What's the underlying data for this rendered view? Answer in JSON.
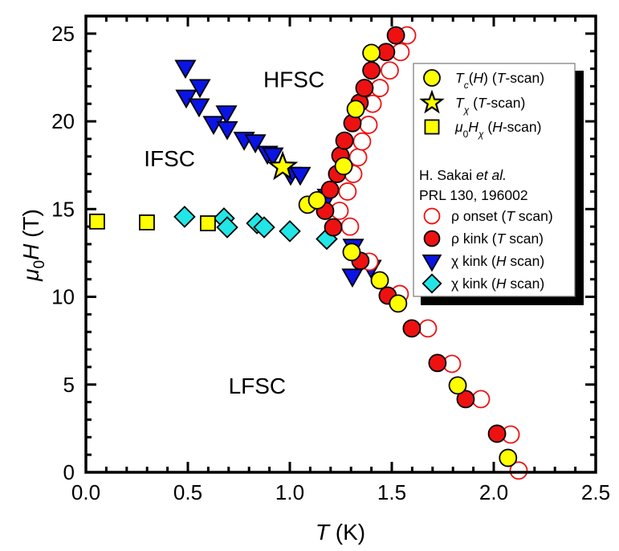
{
  "chart_data": {
    "type": "scatter",
    "title": "",
    "xlabel": "T (K)",
    "xlabel_parts": {
      "italic": "T",
      "rest": " (K)"
    },
    "ylabel": "μ0H (T)",
    "ylabel_parts": {
      "mu": "μ",
      "sub": "0",
      "italic": "H",
      "rest": " (T)"
    },
    "xlim": [
      0.0,
      2.5
    ],
    "ylim": [
      0,
      26
    ],
    "x_major_ticks": [
      0.0,
      0.5,
      1.0,
      1.5,
      2.0,
      2.5
    ],
    "x_tick_labels": [
      "0.0",
      "0.5",
      "1.0",
      "1.5",
      "2.0",
      "2.5"
    ],
    "x_minor_step": 0.1,
    "y_major_ticks": [
      0,
      5,
      10,
      15,
      20,
      25
    ],
    "y_tick_labels": [
      "0",
      "5",
      "10",
      "15",
      "20",
      "25"
    ],
    "y_minor_step": 1,
    "grid": false,
    "legend_position": "top-right",
    "annotations": [
      {
        "text": "HFSC",
        "x": 1.02,
        "y": 22.4
      },
      {
        "text": "IFSC",
        "x": 0.41,
        "y": 17.9
      },
      {
        "text": "LFSC",
        "x": 0.84,
        "y": 4.95
      }
    ],
    "legend": {
      "reference_line1": "H. Sakai et al.",
      "reference_line1_parts": {
        "plain": "H. Sakai ",
        "italic": "et al."
      },
      "reference_line2": "PRL 130, 196002"
    },
    "series": [
      {
        "name": "Tc(H) (T-scan)",
        "label_parts": [
          {
            "t": "T",
            "i": true
          },
          {
            "t": "c",
            "sub": true,
            "i": true
          },
          {
            "t": "(",
            "i": false
          },
          {
            "t": "H",
            "i": true
          },
          {
            "t": ") (",
            "i": false
          },
          {
            "t": "T",
            "i": true
          },
          {
            "t": "-scan)",
            "i": false
          }
        ],
        "marker": "circle",
        "fill": "#ffff00",
        "stroke": "#000000",
        "points": [
          [
            2.07,
            0.82
          ],
          [
            1.823,
            4.95
          ],
          [
            1.531,
            9.62
          ],
          [
            1.441,
            10.94
          ],
          [
            1.303,
            12.55
          ],
          [
            1.087,
            15.25
          ],
          [
            1.134,
            15.5
          ],
          [
            1.264,
            17.45
          ],
          [
            1.323,
            20.7
          ],
          [
            1.4,
            23.9
          ]
        ]
      },
      {
        "name": "Tχ (T-scan)",
        "label_parts": [
          {
            "t": "T",
            "i": true
          },
          {
            "t": "χ",
            "sub": true,
            "i": true
          },
          {
            "t": " (",
            "i": false
          },
          {
            "t": "T",
            "i": true
          },
          {
            "t": "-scan)",
            "i": false
          }
        ],
        "marker": "star",
        "fill": "#ffff00",
        "stroke": "#000000",
        "points": [
          [
            0.965,
            17.4
          ]
        ]
      },
      {
        "name": "μ0Hχ (H-scan)",
        "label_parts": [
          {
            "t": "μ",
            "i": true
          },
          {
            "t": "0",
            "sub": true,
            "i": false
          },
          {
            "t": "H",
            "i": true
          },
          {
            "t": "χ",
            "sub": true,
            "i": true
          },
          {
            "t": " (",
            "i": false
          },
          {
            "t": "H",
            "i": true
          },
          {
            "t": "-scan)",
            "i": false
          }
        ],
        "marker": "square",
        "fill": "#ffff00",
        "stroke": "#000000",
        "points": [
          [
            0.055,
            14.29
          ],
          [
            0.299,
            14.24
          ],
          [
            0.598,
            14.19
          ]
        ]
      },
      {
        "name": "ρ onset (T scan)",
        "label_parts": [
          {
            "t": "ρ onset (",
            "i": false
          },
          {
            "t": "T",
            "i": true
          },
          {
            "t": " scan)",
            "i": false
          }
        ],
        "marker": "circle-open",
        "fill": "#ffffff",
        "stroke": "#ee1111",
        "points": [
          [
            2.122,
            0.1
          ],
          [
            2.083,
            2.15
          ],
          [
            1.937,
            4.17
          ],
          [
            1.795,
            6.18
          ],
          [
            1.677,
            8.2
          ],
          [
            1.539,
            10.16
          ],
          [
            1.39,
            12.0
          ],
          [
            1.295,
            14.0
          ],
          [
            1.244,
            14.9
          ],
          [
            1.283,
            16.0
          ],
          [
            1.311,
            17.0
          ],
          [
            1.335,
            17.95
          ],
          [
            1.354,
            18.85
          ],
          [
            1.386,
            19.8
          ],
          [
            1.406,
            21.0
          ],
          [
            1.441,
            21.9
          ],
          [
            1.49,
            22.9
          ],
          [
            1.543,
            23.95
          ],
          [
            1.575,
            24.9
          ]
        ]
      },
      {
        "name": "ρ kink (T scan)",
        "label_parts": [
          {
            "t": "ρ kink (",
            "i": false
          },
          {
            "t": "T",
            "i": true
          },
          {
            "t": " scan)",
            "i": false
          }
        ],
        "marker": "circle",
        "fill": "#ee1111",
        "stroke": "#000000",
        "points": [
          [
            2.016,
            2.2
          ],
          [
            1.862,
            4.17
          ],
          [
            1.724,
            6.23
          ],
          [
            1.598,
            8.2
          ],
          [
            1.48,
            10.07
          ],
          [
            1.346,
            12.05
          ],
          [
            1.213,
            13.96
          ],
          [
            1.173,
            14.9
          ],
          [
            1.197,
            16.1
          ],
          [
            1.232,
            17.0
          ],
          [
            1.248,
            18.05
          ],
          [
            1.268,
            18.9
          ],
          [
            1.307,
            19.9
          ],
          [
            1.342,
            21.06
          ],
          [
            1.366,
            21.9
          ],
          [
            1.4,
            22.9
          ],
          [
            1.472,
            23.95
          ],
          [
            1.52,
            24.9
          ]
        ]
      },
      {
        "name": "χ kink (H scan)",
        "label_parts": [
          {
            "t": "χ kink (",
            "i": false
          },
          {
            "t": "H",
            "i": true
          },
          {
            "t": " scan)",
            "i": false
          }
        ],
        "marker": "triangle-down",
        "fill": "#0a14e6",
        "stroke": "#000000",
        "points": [
          [
            0.488,
            23.1
          ],
          [
            0.559,
            22.0
          ],
          [
            0.492,
            21.4
          ],
          [
            0.555,
            20.9
          ],
          [
            0.626,
            19.9
          ],
          [
            0.689,
            20.5
          ],
          [
            0.693,
            19.6
          ],
          [
            0.776,
            19.0
          ],
          [
            0.831,
            18.85
          ],
          [
            0.89,
            18.2
          ],
          [
            0.917,
            18.1
          ],
          [
            1.004,
            17.0
          ],
          [
            1.051,
            17.0
          ],
          [
            1.185,
            15.75
          ],
          [
            1.311,
            12.9
          ],
          [
            1.398,
            11.7
          ],
          [
            1.307,
            11.2
          ]
        ]
      },
      {
        "name": "χ kink (H scan)",
        "label_parts": [
          {
            "t": "χ kink (",
            "i": false
          },
          {
            "t": "H",
            "i": true
          },
          {
            "t": " scan)",
            "i": false
          }
        ],
        "marker": "diamond",
        "fill": "#22e6e6",
        "stroke": "#000000",
        "points": [
          [
            0.484,
            14.56
          ],
          [
            0.677,
            14.47
          ],
          [
            0.693,
            13.96
          ],
          [
            0.839,
            14.19
          ],
          [
            0.874,
            13.96
          ],
          [
            1.0,
            13.74
          ],
          [
            1.181,
            13.3
          ]
        ]
      }
    ]
  }
}
